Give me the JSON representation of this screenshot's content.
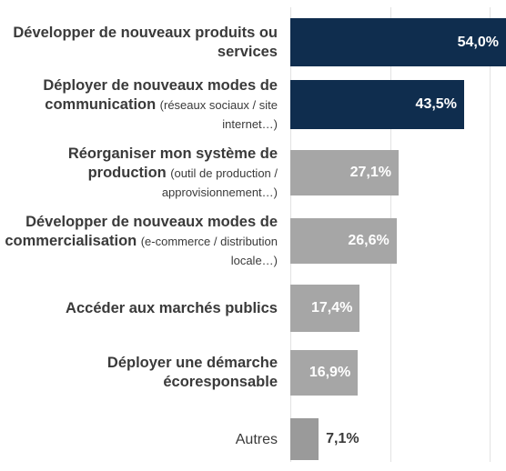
{
  "chart_data": {
    "type": "bar",
    "orientation": "horizontal",
    "categories": [
      [
        {
          "text": "Développer de nouveaux produits ou services",
          "bold": true
        }
      ],
      [
        {
          "text": "Déployer de nouveaux modes de communication",
          "bold": true
        },
        {
          "text": "(réseaux sociaux / site internet…)",
          "bold": false
        }
      ],
      [
        {
          "text": "Réorganiser mon système de production",
          "bold": true
        },
        {
          "text": "(outil de production / approvisionnement…)",
          "bold": false
        }
      ],
      [
        {
          "text": "Développer de nouveaux modes de commercialisation",
          "bold": true
        },
        {
          "text": "(e-commerce / distribution locale…)",
          "bold": false
        }
      ],
      [
        {
          "text": "Accéder aux marchés publics",
          "bold": true
        }
      ],
      [
        {
          "text": "Déployer une démarche écoresponsable",
          "bold": true
        }
      ],
      [
        {
          "text": "Autres",
          "bold": false
        }
      ]
    ],
    "values": [
      54.0,
      43.5,
      27.1,
      26.6,
      17.4,
      16.9,
      7.1
    ],
    "value_labels": [
      "54,0%",
      "43,5%",
      "27,1%",
      "26,6%",
      "17,4%",
      "16,9%",
      "7,1%"
    ],
    "colors": [
      "#0f2d4e",
      "#0f2d4e",
      "#a6a6a6",
      "#a6a6a6",
      "#a6a6a6",
      "#a6a6a6",
      "#9a9a9a"
    ],
    "xlim": [
      0,
      54
    ],
    "xticks": [
      0,
      25,
      50
    ],
    "grid": true
  }
}
